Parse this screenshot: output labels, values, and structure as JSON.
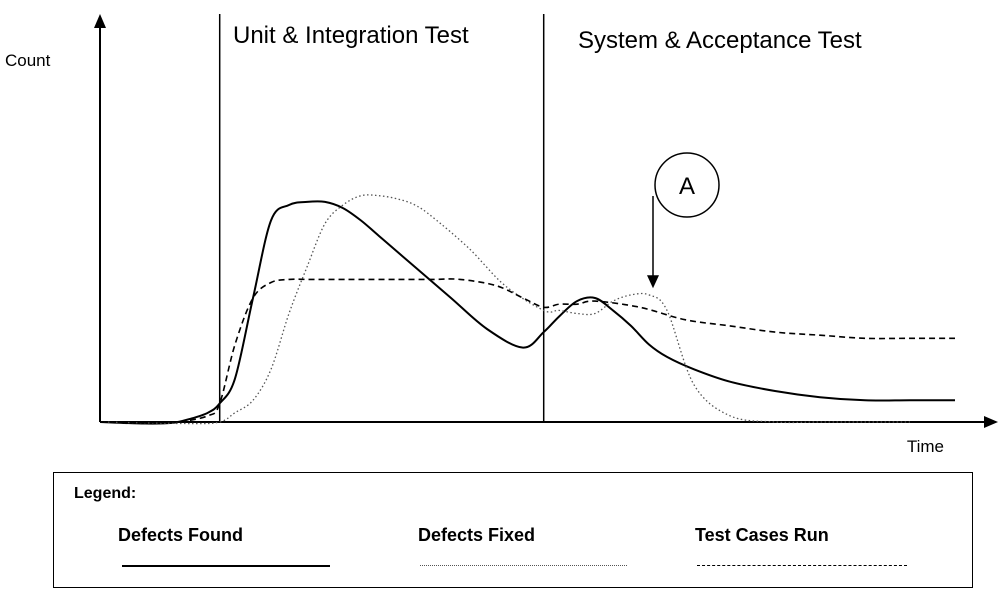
{
  "chart_data": {
    "type": "line",
    "xlabel": "Time",
    "ylabel": "Count",
    "xlim": [
      0,
      100
    ],
    "ylim": [
      0,
      100
    ],
    "grid": false,
    "legend": "bottom",
    "phases": [
      {
        "label": "Unit & Integration Test",
        "x_start": 13.3,
        "x_end": 49.3
      },
      {
        "label": "System & Acceptance Test",
        "x_start": 49.3,
        "x_end": 100
      }
    ],
    "annotations": [
      {
        "label": "A",
        "x": 62,
        "y": 47
      }
    ],
    "series": [
      {
        "name": "Defects Found",
        "style": "solid",
        "x": [
          0,
          5,
          8,
          10,
          12,
          13.3,
          15,
          17,
          19,
          21,
          23,
          25,
          27,
          29,
          31,
          35,
          39,
          43,
          47,
          49.3,
          51,
          53,
          55,
          57,
          59,
          61,
          63,
          66,
          70,
          75,
          80,
          85,
          90,
          95
        ],
        "y": [
          0,
          -0.5,
          -0.3,
          1,
          3,
          6,
          14,
          40,
          65,
          70,
          71,
          71,
          69,
          65,
          60,
          50,
          40,
          30,
          24,
          29,
          34,
          39,
          40,
          36,
          31,
          25,
          21,
          17,
          13,
          10,
          8,
          7,
          7,
          7
        ]
      },
      {
        "name": "Defects Fixed",
        "style": "dotted",
        "x": [
          0,
          10,
          13.3,
          15,
          17,
          19,
          21,
          23,
          25,
          27,
          29,
          31,
          33,
          35,
          37,
          41,
          45,
          49.3,
          51,
          53,
          55,
          57,
          59,
          61,
          63,
          66,
          70,
          75,
          80,
          85,
          90
        ],
        "y": [
          0,
          -0.5,
          0,
          3,
          7,
          17,
          35,
          50,
          64,
          70,
          73,
          73,
          72,
          70,
          66,
          56,
          44,
          36,
          36,
          35,
          35,
          39,
          41,
          41,
          36,
          12,
          2,
          0,
          0,
          0,
          0
        ]
      },
      {
        "name": "Test Cases Run",
        "style": "dashed",
        "x": [
          0,
          8,
          12,
          13.3,
          15,
          17,
          19,
          21,
          23,
          25,
          27,
          29,
          33,
          37,
          40,
          44,
          47,
          49.3,
          51,
          53,
          55,
          60,
          65,
          70,
          75,
          80,
          85,
          90,
          95
        ],
        "y": [
          0,
          0,
          2,
          6,
          25,
          40,
          45,
          46,
          46,
          46,
          46,
          46,
          46,
          46,
          46,
          44,
          40,
          37,
          38,
          38,
          39,
          37,
          33,
          31,
          29,
          28,
          27,
          27,
          27
        ]
      }
    ]
  },
  "legend": {
    "title": "Legend:",
    "items": [
      "Defects Found",
      "Defects Fixed",
      "Test Cases Run"
    ]
  }
}
